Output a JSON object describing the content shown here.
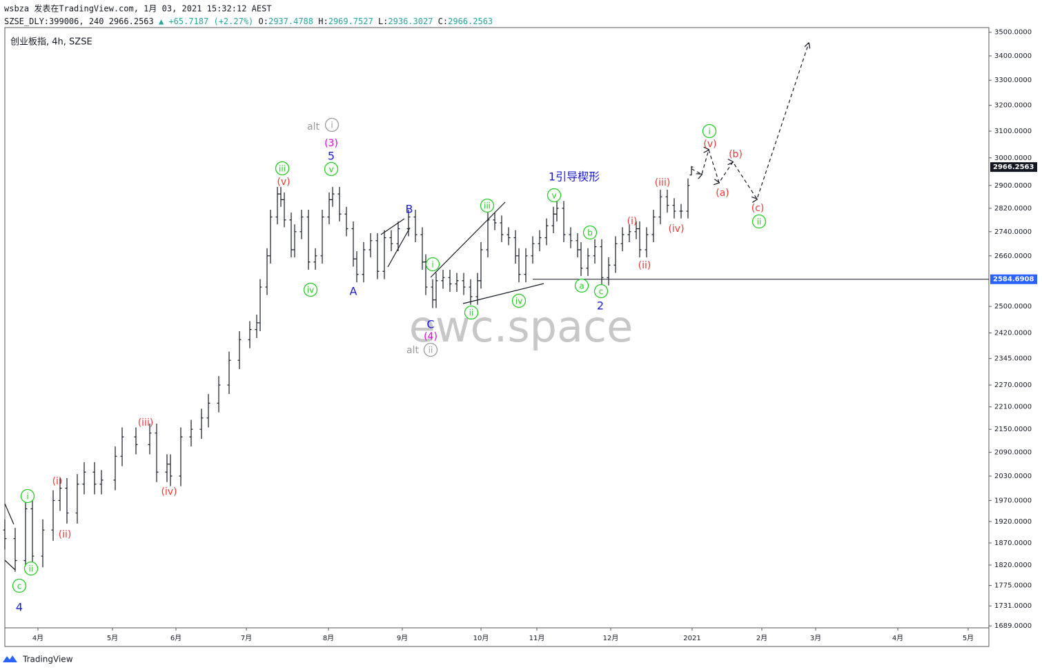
{
  "header": {
    "author_line": "wsbza 发表在TradingView.com, 1月 03, 2021 15:32:12 AEST",
    "symbol": "SZSE_DLY:399006, 240",
    "price": "2966.2563",
    "change": "▲ +65.7187 (+2.27%)",
    "ohlc": [
      {
        "key": "O:",
        "value": "2937.4788"
      },
      {
        "key": "H:",
        "value": "2969.7527"
      },
      {
        "key": "L:",
        "value": "2936.3027"
      },
      {
        "key": "C:",
        "value": "2966.2563"
      }
    ]
  },
  "chart_data": {
    "type": "ohlc",
    "title": "创业板指, 4h, SZSE",
    "watermark": "ewc.space",
    "brand": "TradingView",
    "ylog": true,
    "color": "#131722",
    "xlim": [
      0,
      285.2
    ],
    "ylim": [
      1685,
      3520
    ],
    "xticks": [
      {
        "value": 9.6,
        "label": "4月"
      },
      {
        "value": 31.2,
        "label": "5月"
      },
      {
        "value": 49.6,
        "label": "6月"
      },
      {
        "value": 70,
        "label": "7月"
      },
      {
        "value": 93.8,
        "label": "8月"
      },
      {
        "value": 115.2,
        "label": "9月"
      },
      {
        "value": 138,
        "label": "10月"
      },
      {
        "value": 154.2,
        "label": "11月"
      },
      {
        "value": 175.6,
        "label": "12月"
      },
      {
        "value": 199.2,
        "label": "2021"
      },
      {
        "value": 219.4,
        "label": "2月"
      },
      {
        "value": 235,
        "label": "3月"
      },
      {
        "value": 258.8,
        "label": "4月"
      },
      {
        "value": 279.2,
        "label": "5月"
      }
    ],
    "yticks": [
      {
        "value": 3500,
        "label": "3500.0000"
      },
      {
        "value": 3400,
        "label": "3400.0000"
      },
      {
        "value": 3300,
        "label": "3300.0000"
      },
      {
        "value": 3200,
        "label": "3200.0000"
      },
      {
        "value": 3100,
        "label": "3100.0000"
      },
      {
        "value": 3000,
        "label": "3000.0000"
      },
      {
        "value": 2900,
        "label": "2900.0000"
      },
      {
        "value": 2820,
        "label": "2820.0000"
      },
      {
        "value": 2740,
        "label": "2740.0000"
      },
      {
        "value": 2660,
        "label": "2660.0000"
      },
      {
        "value": 2500,
        "label": "2500.0000"
      },
      {
        "value": 2420,
        "label": "2420.0000"
      },
      {
        "value": 2345,
        "label": "2345.0000"
      },
      {
        "value": 2270,
        "label": "2270.0000"
      },
      {
        "value": 2210,
        "label": "2210.0000"
      },
      {
        "value": 2150,
        "label": "2150.0000"
      },
      {
        "value": 2090,
        "label": "2090.0000"
      },
      {
        "value": 2030,
        "label": "2030.0000"
      },
      {
        "value": 1970,
        "label": "1970.0000"
      },
      {
        "value": 1920,
        "label": "1920.0000"
      },
      {
        "value": 1870,
        "label": "1870.0000"
      },
      {
        "value": 1820,
        "label": "1820.0000"
      },
      {
        "value": 1775,
        "label": "1775.0000"
      },
      {
        "value": 1731,
        "label": "1731.0000"
      },
      {
        "value": 1689,
        "label": "1689.0000"
      }
    ],
    "x": [
      0,
      3,
      6,
      8,
      11,
      14,
      16,
      18,
      21,
      23,
      26,
      28,
      32,
      34,
      38,
      42,
      44,
      47,
      48,
      51,
      54,
      57,
      59,
      62,
      65,
      68,
      71,
      73,
      74,
      76,
      77,
      79,
      80,
      81,
      83,
      84,
      86,
      88,
      90,
      92,
      94,
      95,
      97,
      99,
      101,
      102,
      104,
      106,
      108,
      110,
      112,
      114,
      117,
      119,
      121,
      122,
      124,
      125,
      127,
      129,
      131,
      133,
      135,
      137,
      138,
      140,
      142,
      144,
      146,
      148,
      149,
      151,
      153,
      155,
      157,
      159,
      160,
      162,
      164,
      166,
      167,
      169,
      171,
      173,
      175,
      177,
      179,
      181,
      183,
      184,
      186,
      188,
      190,
      192,
      194,
      196,
      198,
      199
    ],
    "open": [
      1900,
      1880,
      1830,
      1950,
      1840,
      1900,
      1970,
      2000,
      1940,
      2010,
      2040,
      2010,
      2020,
      2080,
      2130,
      2110,
      2140,
      2040,
      2060,
      2030,
      2130,
      2150,
      2180,
      2220,
      2270,
      2340,
      2400,
      2430,
      2450,
      2560,
      2660,
      2790,
      2870,
      2850,
      2780,
      2680,
      2740,
      2790,
      2640,
      2660,
      2790,
      2850,
      2870,
      2800,
      2750,
      2650,
      2600,
      2680,
      2710,
      2610,
      2720,
      2700,
      2750,
      2790,
      2730,
      2640,
      2560,
      2520,
      2580,
      2590,
      2570,
      2580,
      2560,
      2530,
      2580,
      2680,
      2780,
      2770,
      2730,
      2720,
      2660,
      2600,
      2660,
      2700,
      2720,
      2760,
      2800,
      2820,
      2730,
      2710,
      2680,
      2620,
      2660,
      2690,
      2590,
      2630,
      2700,
      2730,
      2740,
      2750,
      2680,
      2730,
      2790,
      2860,
      2830,
      2810,
      2810,
      2937.4788
    ],
    "high": [
      1925,
      1905,
      1975,
      1975,
      1925,
      1995,
      2025,
      2025,
      2035,
      2065,
      2065,
      2045,
      2105,
      2155,
      2155,
      2165,
      2165,
      2085,
      2085,
      2155,
      2175,
      2205,
      2245,
      2295,
      2365,
      2425,
      2455,
      2475,
      2585,
      2685,
      2815,
      2895,
      2895,
      2875,
      2805,
      2765,
      2815,
      2815,
      2685,
      2815,
      2875,
      2895,
      2895,
      2825,
      2775,
      2675,
      2705,
      2735,
      2735,
      2745,
      2745,
      2775,
      2815,
      2815,
      2755,
      2665,
      2585,
      2605,
      2615,
      2615,
      2605,
      2605,
      2585,
      2605,
      2705,
      2805,
      2805,
      2795,
      2755,
      2745,
      2685,
      2685,
      2725,
      2745,
      2785,
      2825,
      2845,
      2845,
      2755,
      2735,
      2705,
      2685,
      2715,
      2715,
      2655,
      2725,
      2755,
      2765,
      2775,
      2775,
      2755,
      2815,
      2885,
      2885,
      2855,
      2835,
      2925,
      2969.7527
    ],
    "low": [
      1855,
      1805,
      1805,
      1815,
      1815,
      1875,
      1945,
      1915,
      1915,
      1985,
      1985,
      1985,
      1995,
      2055,
      2085,
      2085,
      2015,
      2015,
      2005,
      2005,
      2105,
      2125,
      2155,
      2195,
      2245,
      2315,
      2375,
      2405,
      2425,
      2535,
      2635,
      2765,
      2825,
      2755,
      2655,
      2655,
      2715,
      2615,
      2615,
      2635,
      2765,
      2825,
      2775,
      2725,
      2625,
      2575,
      2575,
      2655,
      2585,
      2585,
      2675,
      2675,
      2725,
      2705,
      2615,
      2535,
      2495,
      2495,
      2555,
      2545,
      2545,
      2535,
      2505,
      2505,
      2555,
      2655,
      2745,
      2705,
      2695,
      2635,
      2575,
      2575,
      2635,
      2675,
      2695,
      2735,
      2775,
      2705,
      2685,
      2655,
      2595,
      2595,
      2635,
      2565,
      2565,
      2605,
      2675,
      2705,
      2715,
      2655,
      2655,
      2705,
      2765,
      2805,
      2785,
      2785,
      2785,
      2936.3027
    ],
    "close": [
      1880,
      1830,
      1950,
      1840,
      1900,
      1970,
      2000,
      1940,
      2010,
      2040,
      2010,
      2020,
      2080,
      2130,
      2110,
      2140,
      2040,
      2060,
      2030,
      2130,
      2150,
      2180,
      2220,
      2270,
      2340,
      2400,
      2430,
      2450,
      2560,
      2660,
      2790,
      2870,
      2850,
      2780,
      2680,
      2740,
      2790,
      2640,
      2660,
      2790,
      2850,
      2870,
      2800,
      2750,
      2650,
      2600,
      2680,
      2710,
      2610,
      2720,
      2700,
      2750,
      2790,
      2730,
      2640,
      2560,
      2520,
      2580,
      2590,
      2570,
      2580,
      2560,
      2530,
      2580,
      2680,
      2780,
      2770,
      2730,
      2720,
      2660,
      2600,
      2660,
      2700,
      2720,
      2760,
      2800,
      2820,
      2730,
      2710,
      2680,
      2620,
      2660,
      2690,
      2590,
      2630,
      2700,
      2730,
      2740,
      2750,
      2680,
      2730,
      2790,
      2860,
      2830,
      2810,
      2810,
      2900,
      2966.2563
    ],
    "last_price": {
      "value": 2966.2563,
      "label": "2966.2563"
    },
    "hline": {
      "value": 2584.6908,
      "label": "2584.6908",
      "color": "#2962ff"
    },
    "projection": {
      "x": [
        199,
        202,
        204,
        207,
        211,
        218,
        233
      ],
      "values": [
        2960,
        2940,
        3030,
        2910,
        2985,
        2852,
        3454
      ]
    },
    "annotations": [
      {
        "text": "alt",
        "color": "#999999"
      },
      {
        "text": "i",
        "color": "#999999",
        "circled": true
      },
      {
        "text": "(3)",
        "color": "#e000e0"
      },
      {
        "text": "5",
        "color": "#1a1ad6"
      },
      {
        "text": "v",
        "color": "#22cc22",
        "circled": true
      },
      {
        "text": "iii",
        "color": "#22cc22",
        "circled": true
      },
      {
        "text": "(v)",
        "color": "#e53935"
      },
      {
        "text": "iv",
        "color": "#22cc22",
        "circled": true
      },
      {
        "text": "A",
        "color": "#1a1ad6"
      },
      {
        "text": "B",
        "color": "#1a1ad6"
      },
      {
        "text": "i",
        "color": "#22cc22",
        "circled": true
      },
      {
        "text": "iii",
        "color": "#22cc22",
        "circled": true
      },
      {
        "text": "ii",
        "color": "#22cc22",
        "circled": true
      },
      {
        "text": "iv",
        "color": "#22cc22",
        "circled": true
      },
      {
        "text": "C",
        "color": "#1a1ad6"
      },
      {
        "text": "(4)",
        "color": "#e000e0"
      },
      {
        "text": "alt",
        "color": "#999999"
      },
      {
        "text": "ii",
        "color": "#999999",
        "circled": true
      },
      {
        "text": "1引导楔形",
        "color": "#1a1ad6"
      },
      {
        "text": "v",
        "color": "#22cc22",
        "circled": true
      },
      {
        "text": "b",
        "color": "#22cc22",
        "circled": true
      },
      {
        "text": "a",
        "color": "#22cc22",
        "circled": true
      },
      {
        "text": "c",
        "color": "#22cc22",
        "circled": true
      },
      {
        "text": "2",
        "color": "#1a1ad6"
      },
      {
        "text": "(i)",
        "color": "#e53935"
      },
      {
        "text": "(ii)",
        "color": "#e53935"
      },
      {
        "text": "(iii)",
        "color": "#e53935"
      },
      {
        "text": "(iv)",
        "color": "#e53935"
      },
      {
        "text": "i",
        "color": "#22cc22",
        "circled": true
      },
      {
        "text": "(v)",
        "color": "#e53935"
      },
      {
        "text": "(b)",
        "color": "#e53935"
      },
      {
        "text": "(a)",
        "color": "#e53935"
      },
      {
        "text": "(c)",
        "color": "#e53935"
      },
      {
        "text": "ii",
        "color": "#22cc22",
        "circled": true
      },
      {
        "text": "i",
        "color": "#22cc22",
        "circled": true
      },
      {
        "text": "(i)",
        "color": "#e53935"
      },
      {
        "text": "(ii)",
        "color": "#e53935"
      },
      {
        "text": "(iii)",
        "color": "#e53935"
      },
      {
        "text": "(iv)",
        "color": "#e53935"
      },
      {
        "text": "ii",
        "color": "#22cc22",
        "circled": true
      },
      {
        "text": "c",
        "color": "#22cc22",
        "circled": true
      },
      {
        "text": "4",
        "color": "#1a1ad6"
      }
    ]
  }
}
